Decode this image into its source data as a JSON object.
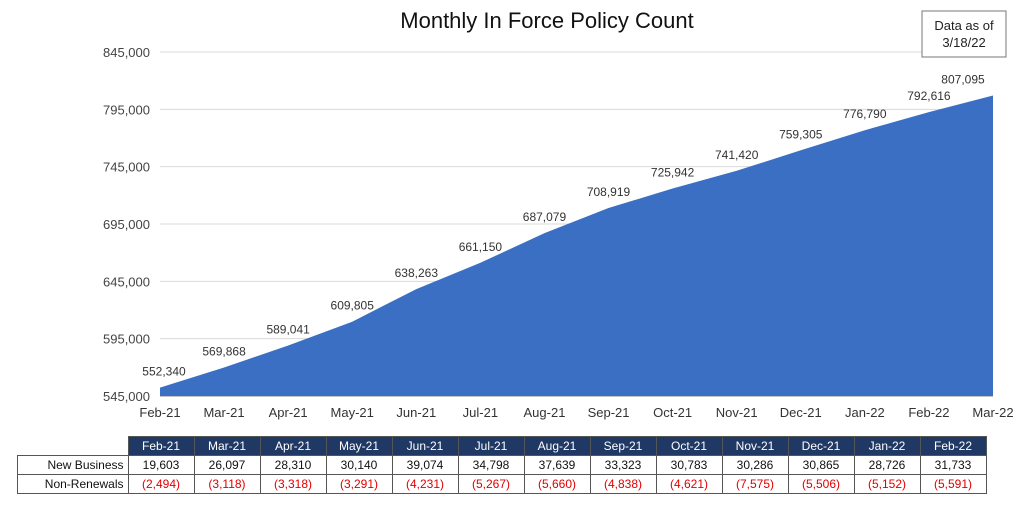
{
  "chart_data": {
    "type": "area",
    "title": "Monthly In Force Policy Count",
    "annotation": "Data as of 3/18/22",
    "x_labels": [
      "Feb-21",
      "Mar-21",
      "Apr-21",
      "May-21",
      "Jun-21",
      "Jul-21",
      "Aug-21",
      "Sep-21",
      "Oct-21",
      "Nov-21",
      "Dec-21",
      "Jan-22",
      "Feb-22",
      "Mar-22"
    ],
    "point_labels": [
      "552,340",
      "569,868",
      "589,041",
      "609,805",
      "638,263",
      "661,150",
      "687,079",
      "708,919",
      "725,942",
      "741,420",
      "759,305",
      "776,790",
      "792,616",
      "807,095"
    ],
    "values": [
      552340,
      569868,
      589041,
      609805,
      638263,
      661150,
      687079,
      708919,
      725942,
      741420,
      759305,
      776790,
      792616,
      807095
    ],
    "y_ticks": [
      "545,000",
      "595,000",
      "645,000",
      "695,000",
      "745,000",
      "795,000",
      "845,000"
    ],
    "ylim": [
      545000,
      845000
    ],
    "grid": true,
    "color": "#3a6fc4"
  },
  "table": {
    "months": [
      "Feb-21",
      "Mar-21",
      "Apr-21",
      "May-21",
      "Jun-21",
      "Jul-21",
      "Aug-21",
      "Sep-21",
      "Oct-21",
      "Nov-21",
      "Dec-21",
      "Jan-22",
      "Feb-22"
    ],
    "rows": [
      {
        "label": "New Business",
        "values": [
          "19,603",
          "26,097",
          "28,310",
          "30,140",
          "39,074",
          "34,798",
          "37,639",
          "33,323",
          "30,783",
          "30,286",
          "30,865",
          "28,726",
          "31,733"
        ],
        "color": "#111111"
      },
      {
        "label": "Non-Renewals",
        "values": [
          "(2,494)",
          "(3,118)",
          "(3,318)",
          "(3,291)",
          "(4,231)",
          "(5,267)",
          "(5,660)",
          "(4,838)",
          "(4,621)",
          "(7,575)",
          "(5,506)",
          "(5,152)",
          "(5,591)"
        ],
        "color": "#e00000"
      }
    ],
    "header_color": "#1f3864"
  }
}
